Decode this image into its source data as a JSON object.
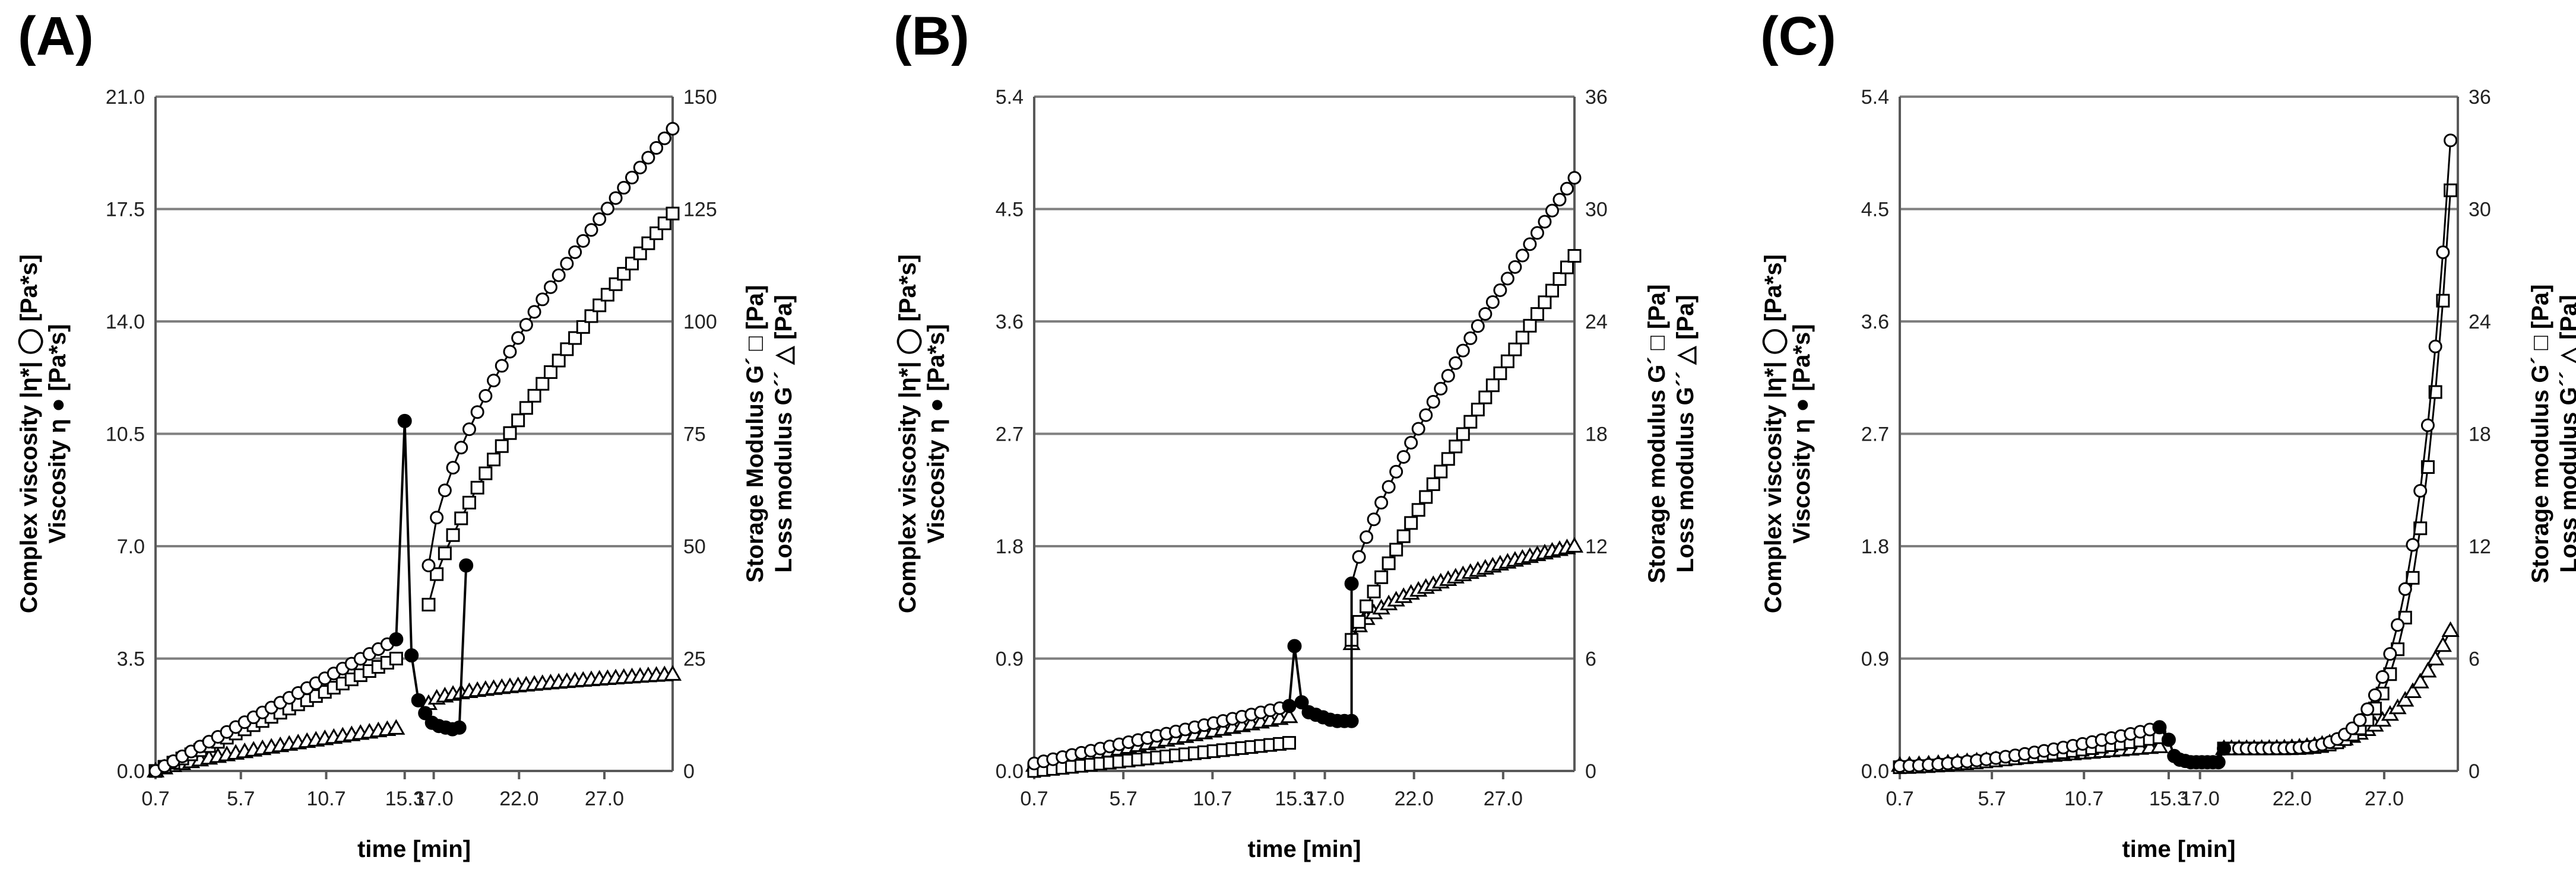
{
  "chart_data": [
    {
      "panel": "(A)",
      "type": "line",
      "xlabel": "time [min]",
      "ylabel_left_line1": "Complex viscosity |η*| ◯ [Pa*s]",
      "ylabel_left_line2": "Viscosity η ● [Pa*s]",
      "ylabel_right_line1": "Storage Modulus G´ □ [Pa]",
      "ylabel_right_line2": "Loss modulus G´´ △ [Pa]",
      "ylim_left": [
        0,
        21
      ],
      "ylim_right": [
        0,
        150
      ],
      "yticks_left": [
        "0.0",
        "3.5",
        "7.0",
        "10.5",
        "14.0",
        "17.5",
        "21.0"
      ],
      "yticks_right": [
        "0",
        "25",
        "50",
        "75",
        "100",
        "125",
        "150"
      ],
      "xlim": [
        0.7,
        31.0
      ],
      "xtick_values": [
        0.7,
        5.7,
        10.7,
        15.3,
        17.0,
        22.0,
        27.0
      ],
      "xtick_labels": [
        "0.7",
        "5.7",
        "10.7",
        "15.3",
        "17.0",
        "22.0",
        "27.0"
      ],
      "series": [
        {
          "name": "Complex viscosity |η*|",
          "marker": "circle",
          "axis": "left",
          "segments": [
            {
              "x0": 0.7,
              "x1": 14.8,
              "y0": 0.0,
              "y1": 4.1,
              "n": 28,
              "shape": 1.0
            },
            {
              "x0": 16.7,
              "x1": 31.0,
              "y0": 6.4,
              "y1": 20.0,
              "n": 31,
              "shape": 0.65
            }
          ]
        },
        {
          "name": "Viscosity η",
          "marker": "filled-circle",
          "axis": "left",
          "points": [
            [
              14.8,
              4.1
            ],
            [
              15.3,
              10.9
            ],
            [
              15.7,
              3.6
            ],
            [
              16.1,
              2.2
            ],
            [
              16.5,
              1.8
            ],
            [
              16.9,
              1.5
            ],
            [
              17.3,
              1.4
            ],
            [
              17.7,
              1.35
            ],
            [
              18.1,
              1.3
            ],
            [
              18.5,
              1.35
            ],
            [
              18.9,
              6.4
            ]
          ]
        },
        {
          "name": "Storage Modulus G´",
          "marker": "square",
          "axis": "right",
          "segments": [
            {
              "x0": 0.7,
              "x1": 14.8,
              "y0": 0.0,
              "y1": 25.0,
              "n": 28,
              "shape": 1.0
            },
            {
              "x0": 16.7,
              "x1": 31.0,
              "y0": 37.0,
              "y1": 124.0,
              "n": 31,
              "shape": 0.75
            }
          ]
        },
        {
          "name": "Loss modulus G´´",
          "marker": "triangle",
          "axis": "right",
          "segments": [
            {
              "x0": 0.7,
              "x1": 14.8,
              "y0": 0.0,
              "y1": 9.5,
              "n": 28,
              "shape": 0.8
            },
            {
              "x0": 16.7,
              "x1": 31.0,
              "y0": 15.0,
              "y1": 21.5,
              "n": 31,
              "shape": 0.5
            }
          ]
        }
      ]
    },
    {
      "panel": "(B)",
      "type": "line",
      "xlabel": "time [min]",
      "ylabel_left_line1": "Complex viscosity |η*| ◯ [Pa*s]",
      "ylabel_left_line2": "Viscosity η ● [Pa*s]",
      "ylabel_right_line1": "Storage modulus G´ □ [Pa]",
      "ylabel_right_line2": "Loss modulus G´´ △ [Pa]",
      "ylim_left": [
        0,
        5.4
      ],
      "ylim_right": [
        0,
        36
      ],
      "yticks_left": [
        "0.0",
        "0.9",
        "1.8",
        "2.7",
        "3.6",
        "4.5",
        "5.4"
      ],
      "yticks_right": [
        "0",
        "6",
        "12",
        "18",
        "24",
        "30",
        "36"
      ],
      "xlim": [
        0.7,
        31.0
      ],
      "xtick_values": [
        0.7,
        5.7,
        10.7,
        15.3,
        17.0,
        22.0,
        27.0
      ],
      "xtick_labels": [
        "0.7",
        "5.7",
        "10.7",
        "15.3",
        "17.0",
        "22.0",
        "27.0"
      ],
      "series": [
        {
          "name": "Complex viscosity |η*|",
          "marker": "circle",
          "axis": "left",
          "segments": [
            {
              "x0": 0.7,
              "x1": 15.0,
              "y0": 0.06,
              "y1": 0.52,
              "n": 28,
              "shape": 1.0
            },
            {
              "x0": 18.5,
              "x1": 31.0,
              "y0": 1.5,
              "y1": 4.75,
              "n": 31,
              "shape": 0.8
            }
          ]
        },
        {
          "name": "Viscosity η",
          "marker": "filled-circle",
          "axis": "left",
          "points": [
            [
              15.0,
              0.52
            ],
            [
              15.3,
              1.0
            ],
            [
              15.7,
              0.55
            ],
            [
              16.1,
              0.47
            ],
            [
              16.5,
              0.45
            ],
            [
              16.9,
              0.43
            ],
            [
              17.3,
              0.41
            ],
            [
              17.7,
              0.4
            ],
            [
              18.1,
              0.4
            ],
            [
              18.5,
              0.4
            ],
            [
              18.5,
              1.5
            ]
          ]
        },
        {
          "name": "Storage modulus G´",
          "marker": "square",
          "axis": "right",
          "segments": [
            {
              "x0": 0.7,
              "x1": 15.0,
              "y0": 0.0,
              "y1": 1.5,
              "n": 28,
              "shape": 1.0
            },
            {
              "x0": 18.5,
              "x1": 31.0,
              "y0": 7.0,
              "y1": 27.5,
              "n": 31,
              "shape": 0.9
            }
          ]
        },
        {
          "name": "Loss modulus G´´",
          "marker": "triangle",
          "axis": "right",
          "segments": [
            {
              "x0": 0.7,
              "x1": 15.0,
              "y0": 0.3,
              "y1": 2.9,
              "n": 28,
              "shape": 1.0
            },
            {
              "x0": 18.5,
              "x1": 31.0,
              "y0": 6.8,
              "y1": 12.0,
              "n": 31,
              "shape": 0.5
            }
          ]
        }
      ]
    },
    {
      "panel": "(C)",
      "type": "line",
      "xlabel": "time [min]",
      "ylabel_left_line1": "Complex viscosity |η*| ◯ [Pa*s]",
      "ylabel_left_line2": "Viscosity η ● [Pa*s]",
      "ylabel_right_line1": "Storage modulus G´ □ [Pa]",
      "ylabel_right_line2": "Loss modulus G´´ △ [Pa]",
      "ylim_left": [
        0,
        5.4
      ],
      "ylim_right": [
        0,
        36
      ],
      "yticks_left": [
        "0.0",
        "0.9",
        "1.8",
        "2.7",
        "3.6",
        "4.5",
        "5.4"
      ],
      "yticks_right": [
        "0",
        "6",
        "12",
        "18",
        "24",
        "30",
        "36"
      ],
      "xlim": [
        0.7,
        31.0
      ],
      "xtick_values": [
        0.7,
        5.7,
        10.7,
        15.3,
        17.0,
        22.0,
        27.0
      ],
      "xtick_labels": [
        "0.7",
        "5.7",
        "10.7",
        "15.3",
        "17.0",
        "22.0",
        "27.0"
      ],
      "series": [
        {
          "name": "Complex viscosity |η*|",
          "marker": "circle",
          "axis": "left",
          "segments": [
            {
              "x0": 0.7,
              "x1": 14.8,
              "y0": 0.04,
              "y1": 0.35,
              "n": 28,
              "shape": 1.6
            },
            {
              "x0": 18.3,
              "x1": 30.6,
              "y0": 0.18,
              "y1": 5.05,
              "n": 31,
              "shape": 6.0
            }
          ]
        },
        {
          "name": "Viscosity η",
          "marker": "filled-circle",
          "axis": "left",
          "points": [
            [
              14.8,
              0.35
            ],
            [
              15.3,
              0.25
            ],
            [
              15.6,
              0.12
            ],
            [
              15.9,
              0.09
            ],
            [
              16.2,
              0.08
            ],
            [
              16.5,
              0.07
            ],
            [
              16.8,
              0.07
            ],
            [
              17.1,
              0.07
            ],
            [
              17.4,
              0.07
            ],
            [
              17.7,
              0.07
            ],
            [
              18.0,
              0.07
            ],
            [
              18.3,
              0.18
            ]
          ]
        },
        {
          "name": "Storage modulus G´",
          "marker": "square",
          "axis": "right",
          "segments": [
            {
              "x0": 0.7,
              "x1": 14.8,
              "y0": 0.2,
              "y1": 1.8,
              "n": 28,
              "shape": 1.5
            },
            {
              "x0": 18.3,
              "x1": 30.6,
              "y0": 1.2,
              "y1": 31.0,
              "n": 31,
              "shape": 6.5
            }
          ]
        },
        {
          "name": "Loss modulus G´´",
          "marker": "triangle",
          "axis": "right",
          "segments": [
            {
              "x0": 0.7,
              "x1": 14.8,
              "y0": 0.3,
              "y1": 1.3,
              "n": 28,
              "shape": 1.2
            },
            {
              "x0": 18.3,
              "x1": 30.6,
              "y0": 1.2,
              "y1": 7.5,
              "n": 31,
              "shape": 4.0
            }
          ]
        }
      ]
    }
  ]
}
